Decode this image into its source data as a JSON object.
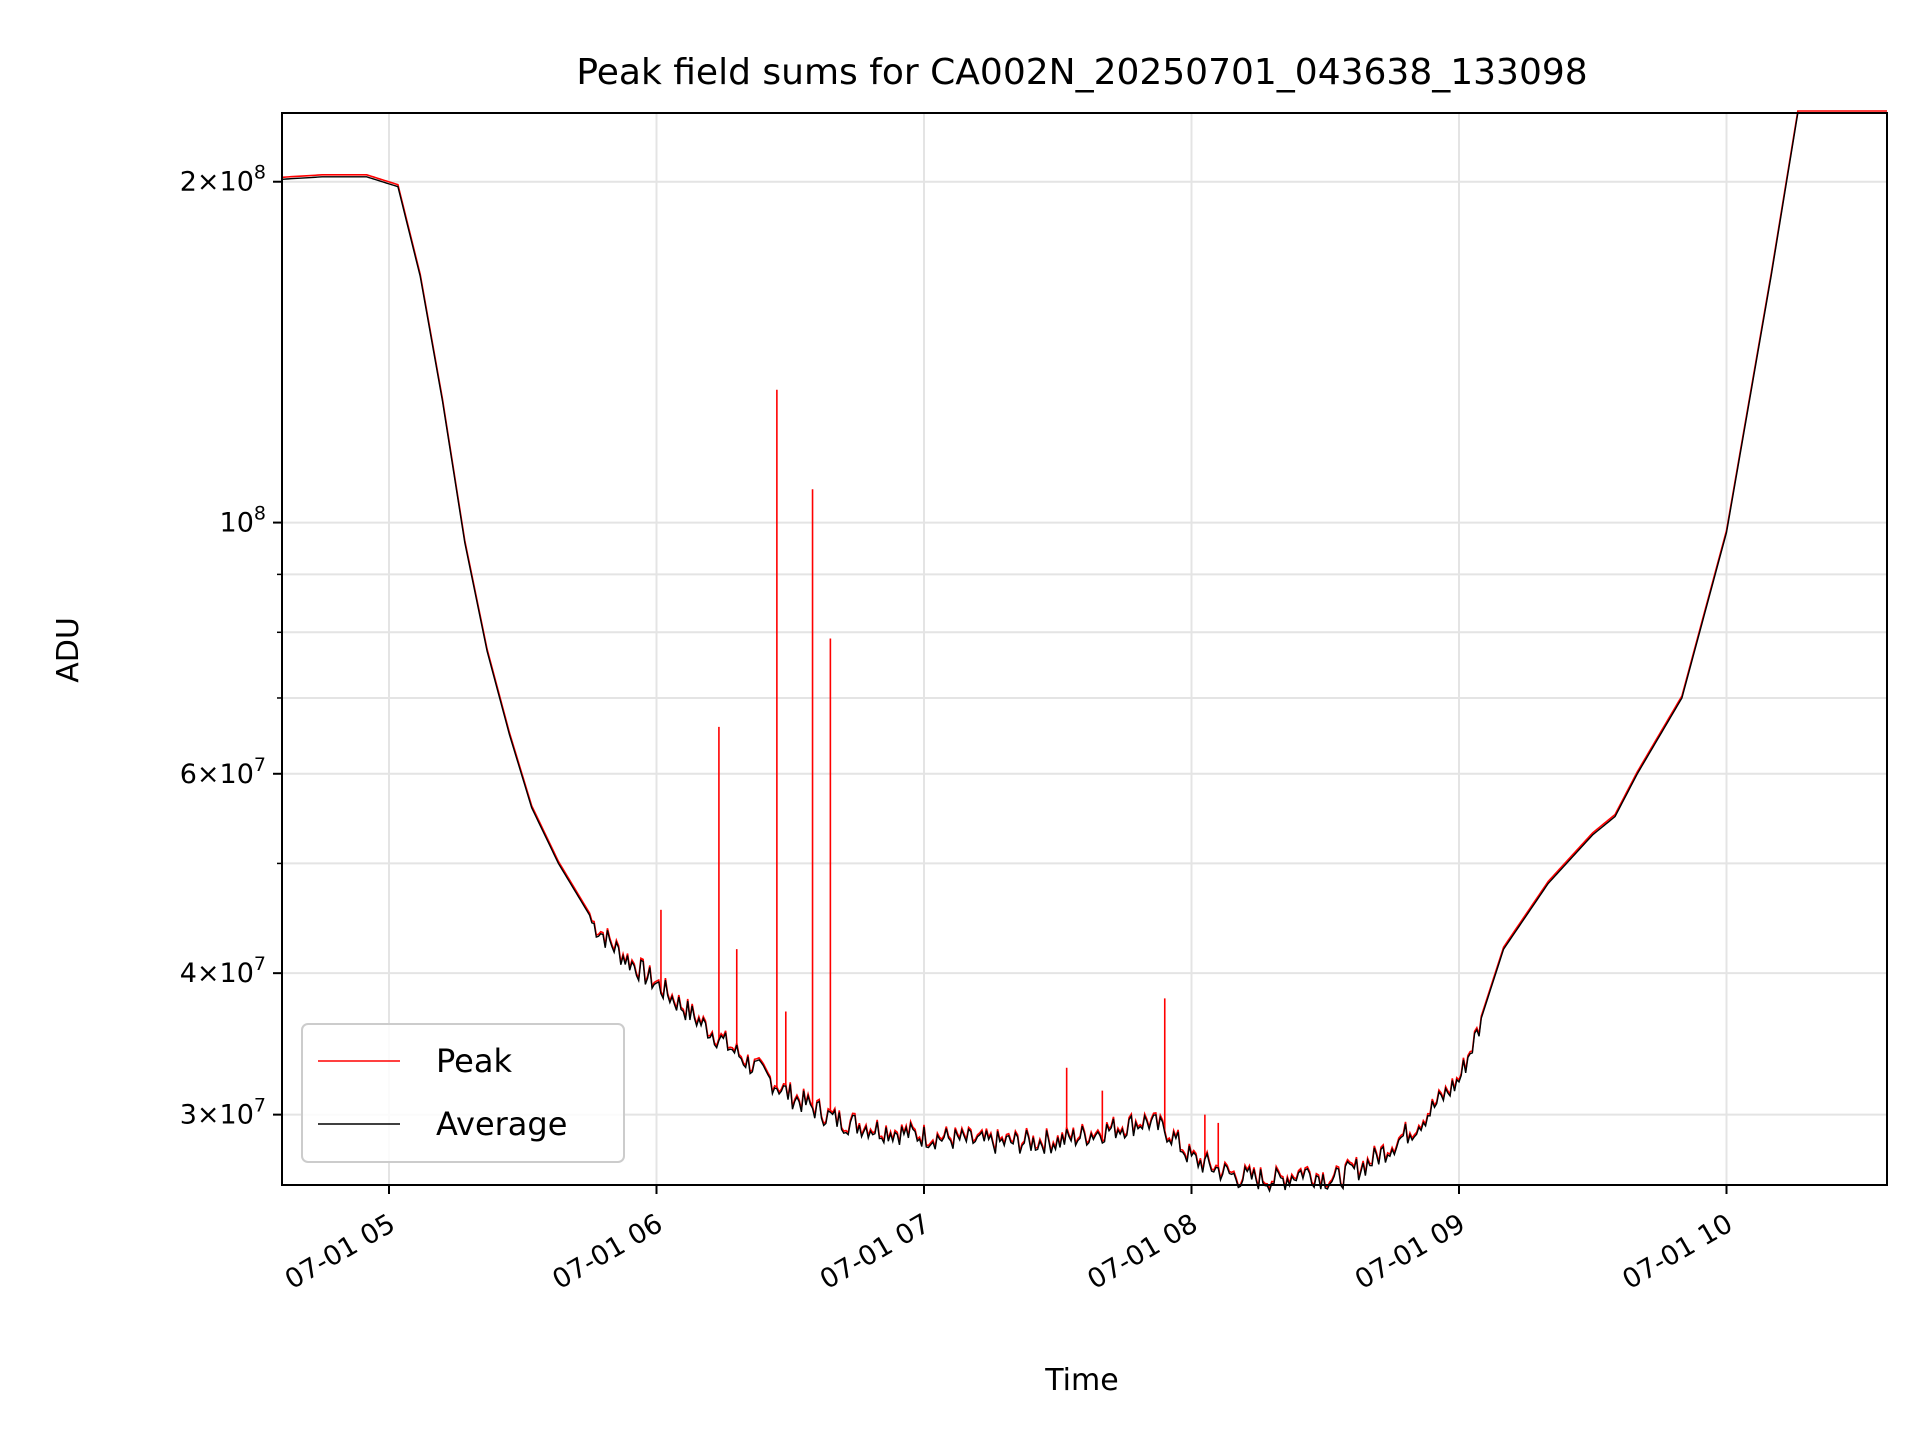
{
  "chart_data": {
    "type": "line",
    "title": "Peak field sums for CA002N_20250701_043638_133098",
    "xlabel": "Time",
    "ylabel": "ADU",
    "yscale": "log",
    "xlim": [
      "2025-07-01 04:36",
      "2025-07-01 10:36"
    ],
    "ylim": [
      26000000,
      230000000
    ],
    "grid": true,
    "legend_position": "lower-left",
    "x_ticks": [
      {
        "value": "2025-07-01 05:00",
        "label": "07-01 05"
      },
      {
        "value": "2025-07-01 06:00",
        "label": "07-01 06"
      },
      {
        "value": "2025-07-01 07:00",
        "label": "07-01 07"
      },
      {
        "value": "2025-07-01 08:00",
        "label": "07-01 08"
      },
      {
        "value": "2025-07-01 09:00",
        "label": "07-01 09"
      },
      {
        "value": "2025-07-01 10:00",
        "label": "07-01 10"
      }
    ],
    "y_ticks": [
      {
        "value": 30000000,
        "base": "3",
        "exp": "7"
      },
      {
        "value": 40000000,
        "base": "4",
        "exp": "7"
      },
      {
        "value": 60000000,
        "base": "6",
        "exp": "7"
      },
      {
        "value": 100000000,
        "base": "",
        "exp": "8"
      },
      {
        "value": 200000000,
        "base": "2",
        "exp": "8"
      }
    ],
    "series": [
      {
        "name": "Average",
        "color": "#000000",
        "x": [
          "2025-07-01 04:36",
          "2025-07-01 04:45",
          "2025-07-01 04:55",
          "2025-07-01 05:02",
          "2025-07-01 05:07",
          "2025-07-01 05:12",
          "2025-07-01 05:17",
          "2025-07-01 05:22",
          "2025-07-01 05:27",
          "2025-07-01 05:32",
          "2025-07-01 05:38",
          "2025-07-01 05:45",
          "2025-07-01 05:52",
          "2025-07-01 06:00",
          "2025-07-01 06:10",
          "2025-07-01 06:20",
          "2025-07-01 06:30",
          "2025-07-01 06:40",
          "2025-07-01 06:50",
          "2025-07-01 07:00",
          "2025-07-01 07:15",
          "2025-07-01 07:30",
          "2025-07-01 07:40",
          "2025-07-01 07:50",
          "2025-07-01 07:55",
          "2025-07-01 08:00",
          "2025-07-01 08:10",
          "2025-07-01 08:20",
          "2025-07-01 08:25",
          "2025-07-01 08:32",
          "2025-07-01 08:40",
          "2025-07-01 08:50",
          "2025-07-01 09:00",
          "2025-07-01 09:05",
          "2025-07-01 09:10",
          "2025-07-01 09:20",
          "2025-07-01 09:30",
          "2025-07-01 09:35",
          "2025-07-01 09:40",
          "2025-07-01 09:50",
          "2025-07-01 10:00",
          "2025-07-01 10:10",
          "2025-07-01 10:16",
          "2025-07-01 10:36"
        ],
        "y": [
          201000000,
          202000000,
          202000000,
          198000000,
          165000000,
          128000000,
          96000000,
          77000000,
          65000000,
          56000000,
          50000000,
          45000000,
          42000000,
          39500000,
          36500000,
          33800000,
          31500000,
          30000000,
          29400000,
          29000000,
          28600000,
          28700000,
          29300000,
          29900000,
          29200000,
          27700000,
          26700000,
          26500000,
          27000000,
          26500000,
          27500000,
          29500000,
          32500000,
          36500000,
          42000000,
          48000000,
          53000000,
          55000000,
          60000000,
          70000000,
          98000000,
          165000000,
          230000000,
          230000000
        ]
      },
      {
        "name": "Peak",
        "color": "#ff0000",
        "spikes": [
          {
            "x": "2025-07-01 06:01",
            "y": 45500000
          },
          {
            "x": "2025-07-01 06:14",
            "y": 66000000
          },
          {
            "x": "2025-07-01 06:18",
            "y": 42000000
          },
          {
            "x": "2025-07-01 06:27",
            "y": 131000000
          },
          {
            "x": "2025-07-01 06:29",
            "y": 37000000
          },
          {
            "x": "2025-07-01 06:35",
            "y": 107000000
          },
          {
            "x": "2025-07-01 06:39",
            "y": 79000000
          },
          {
            "x": "2025-07-01 07:32",
            "y": 33000000
          },
          {
            "x": "2025-07-01 07:40",
            "y": 31500000
          },
          {
            "x": "2025-07-01 07:54",
            "y": 38000000
          },
          {
            "x": "2025-07-01 08:03",
            "y": 30000000
          },
          {
            "x": "2025-07-01 08:06",
            "y": 29500000
          }
        ]
      }
    ]
  }
}
